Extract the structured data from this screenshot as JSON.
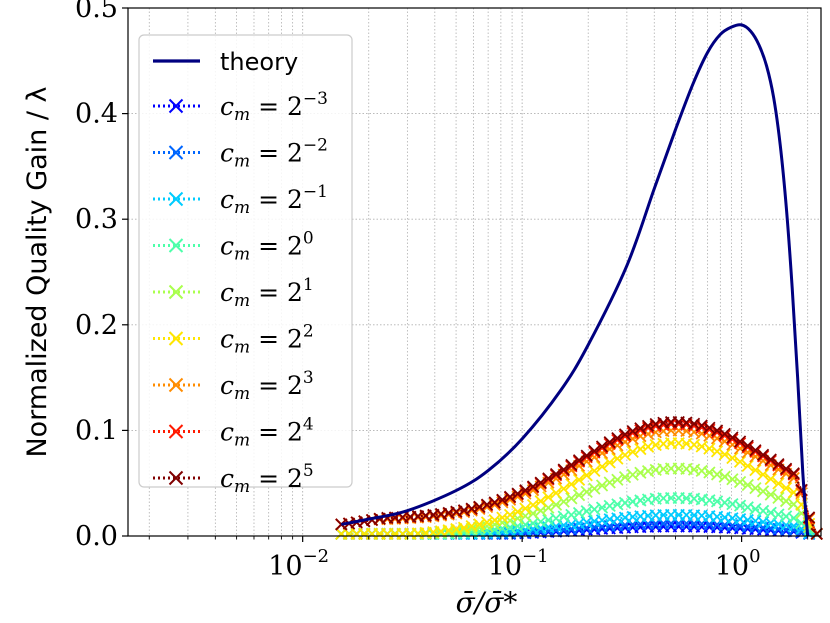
{
  "chart_data": {
    "type": "line",
    "title": "",
    "xlabel": "σ̄/σ̄*",
    "ylabel": "Normalized Quality Gain / λ",
    "xscale": "log",
    "xlim": [
      0.0016,
      2.3
    ],
    "ylim": [
      0,
      0.5
    ],
    "grid": true,
    "legend_position": "top-left",
    "x_ticks": [
      {
        "value": 0.01,
        "base": "10",
        "exp": "−2"
      },
      {
        "value": 0.1,
        "base": "10",
        "exp": "−1"
      },
      {
        "value": 1,
        "base": "10",
        "exp": "0"
      }
    ],
    "y_ticks": [
      {
        "value": 0.0,
        "label": "0.0"
      },
      {
        "value": 0.1,
        "label": "0.1"
      },
      {
        "value": 0.2,
        "label": "0.2"
      },
      {
        "value": 0.3,
        "label": "0.3"
      },
      {
        "value": 0.4,
        "label": "0.4"
      },
      {
        "value": 0.5,
        "label": "0.5"
      }
    ],
    "theory": {
      "name": "theory",
      "color": "#000080",
      "x": [
        0.015,
        0.02,
        0.03,
        0.05,
        0.07,
        0.1,
        0.15,
        0.2,
        0.3,
        0.4,
        0.5,
        0.6,
        0.7,
        0.8,
        0.9,
        1.0,
        1.1,
        1.2,
        1.3,
        1.4,
        1.5,
        1.6,
        1.7,
        1.8,
        1.9,
        2.0
      ],
      "y": [
        0.011,
        0.016,
        0.024,
        0.043,
        0.062,
        0.092,
        0.138,
        0.181,
        0.256,
        0.329,
        0.385,
        0.428,
        0.458,
        0.475,
        0.482,
        0.484,
        0.478,
        0.465,
        0.445,
        0.415,
        0.37,
        0.31,
        0.235,
        0.15,
        0.06,
        0.0
      ]
    },
    "series": [
      {
        "legend_prefix": "c",
        "legend_sub": "m",
        "legend_eq": " = 2",
        "legend_exp": "−3",
        "color": "#0000ff",
        "peak": 0.009
      },
      {
        "legend_prefix": "c",
        "legend_sub": "m",
        "legend_eq": " = 2",
        "legend_exp": "−2",
        "color": "#0066ff",
        "peak": 0.012
      },
      {
        "legend_prefix": "c",
        "legend_sub": "m",
        "legend_eq": " = 2",
        "legend_exp": "−1",
        "color": "#00ccff",
        "peak": 0.02
      },
      {
        "legend_prefix": "c",
        "legend_sub": "m",
        "legend_eq": " = 2",
        "legend_exp": "0",
        "color": "#4dffaa",
        "peak": 0.036
      },
      {
        "legend_prefix": "c",
        "legend_sub": "m",
        "legend_eq": " = 2",
        "legend_exp": "1",
        "color": "#aaff4d",
        "peak": 0.064
      },
      {
        "legend_prefix": "c",
        "legend_sub": "m",
        "legend_eq": " = 2",
        "legend_exp": "2",
        "color": "#ffe600",
        "peak": 0.088
      },
      {
        "legend_prefix": "c",
        "legend_sub": "m",
        "legend_eq": " = 2",
        "legend_exp": "3",
        "color": "#ff8c00",
        "peak": 0.1
      },
      {
        "legend_prefix": "c",
        "legend_sub": "m",
        "legend_eq": " = 2",
        "legend_exp": "4",
        "color": "#ff1a00",
        "peak": 0.106
      },
      {
        "legend_prefix": "c",
        "legend_sub": "m",
        "legend_eq": " = 2",
        "legend_exp": "5",
        "color": "#800000",
        "peak": 0.108
      }
    ],
    "series_x_range": [
      0.015,
      2.2
    ]
  }
}
